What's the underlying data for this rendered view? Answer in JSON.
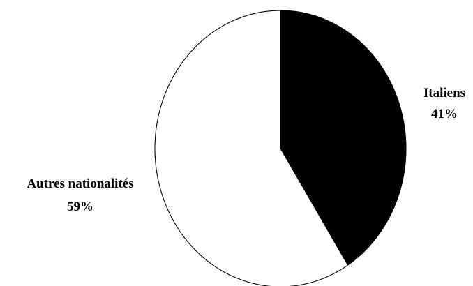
{
  "chart_data": {
    "type": "pie",
    "start_angle_deg": 0,
    "direction": "clockwise",
    "slices": [
      {
        "label": "Italiens",
        "value": 41,
        "value_label": "41%",
        "color": "#000000"
      },
      {
        "label": "Autres nationalités",
        "value": 59,
        "value_label": "59%",
        "color": "#ffffff"
      }
    ],
    "outline_color": "#000000",
    "legend": "none"
  }
}
